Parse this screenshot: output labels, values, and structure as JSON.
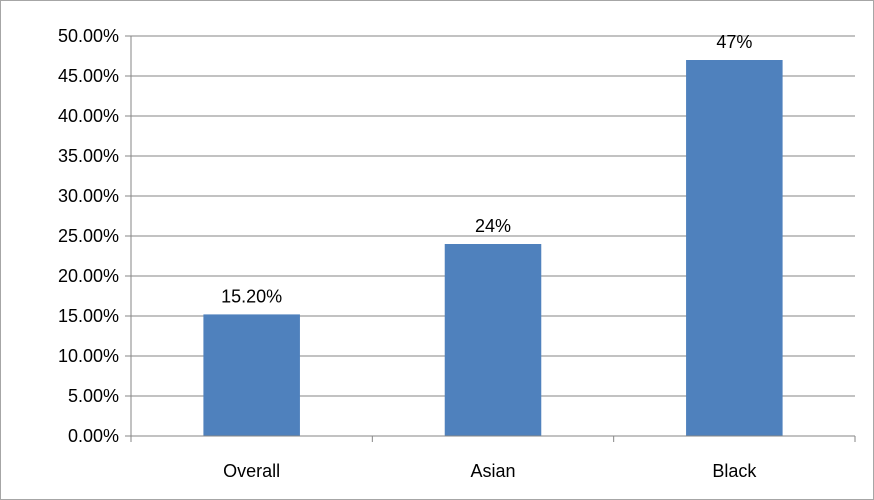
{
  "chart_data": {
    "type": "bar",
    "categories": [
      "Overall",
      "Asian",
      "Black"
    ],
    "values": [
      15.2,
      24,
      47
    ],
    "data_labels": [
      "15.20%",
      "24%",
      "47%"
    ],
    "title": "",
    "xlabel": "",
    "ylabel": "",
    "ylim": [
      0,
      50
    ],
    "y_ticks": [
      0,
      5,
      10,
      15,
      20,
      25,
      30,
      35,
      40,
      45,
      50
    ],
    "y_tick_labels": [
      "0.00%",
      "5.00%",
      "10.00%",
      "15.00%",
      "20.00%",
      "25.00%",
      "30.00%",
      "35.00%",
      "40.00%",
      "45.00%",
      "50.00%"
    ],
    "grid": true,
    "legend": "none",
    "colors": {
      "bar": "#4F81BD",
      "grid": "#868686",
      "axis": "#868686",
      "text": "#000000",
      "border": "#A6A6A6"
    }
  }
}
